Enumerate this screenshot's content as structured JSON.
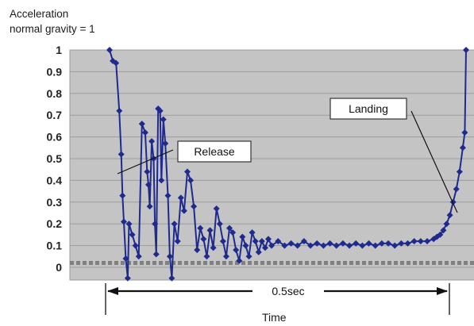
{
  "chart_data": {
    "type": "scatter",
    "ylabel_lines": [
      "Acceleration",
      "normal gravity = 1"
    ],
    "xlabel": "Time",
    "ylim": [
      0,
      1
    ],
    "yticks": [
      "1",
      "0.9",
      "0.8",
      "0.7",
      "0.6",
      "0.5",
      "0.4",
      "0.3",
      "0.2",
      "0.1",
      "0"
    ],
    "grid": true,
    "baseline_y": 0.02,
    "duration_label": "0.5sec",
    "annotations": [
      {
        "text": "Release"
      },
      {
        "text": "Landing"
      }
    ],
    "series": [
      {
        "style": "line-with-diamond-markers",
        "color": "#1f2a8f",
        "points": [
          [
            0.0,
            1.0
          ],
          [
            0.005,
            0.95
          ],
          [
            0.01,
            0.94
          ],
          [
            0.015,
            0.72
          ],
          [
            0.018,
            0.52
          ],
          [
            0.02,
            0.33
          ],
          [
            0.022,
            0.21
          ],
          [
            0.025,
            0.04
          ],
          [
            0.028,
            -0.05
          ],
          [
            0.03,
            0.2
          ],
          [
            0.035,
            0.15
          ],
          [
            0.04,
            0.1
          ],
          [
            0.045,
            0.05
          ],
          [
            0.05,
            0.66
          ],
          [
            0.055,
            0.62
          ],
          [
            0.058,
            0.44
          ],
          [
            0.06,
            0.38
          ],
          [
            0.062,
            0.28
          ],
          [
            0.065,
            0.58
          ],
          [
            0.068,
            0.5
          ],
          [
            0.07,
            0.2
          ],
          [
            0.072,
            0.06
          ],
          [
            0.075,
            0.73
          ],
          [
            0.078,
            0.72
          ],
          [
            0.08,
            0.4
          ],
          [
            0.083,
            0.68
          ],
          [
            0.086,
            0.57
          ],
          [
            0.09,
            0.33
          ],
          [
            0.093,
            0.05
          ],
          [
            0.096,
            -0.05
          ],
          [
            0.1,
            0.2
          ],
          [
            0.105,
            0.12
          ],
          [
            0.11,
            0.32
          ],
          [
            0.115,
            0.26
          ],
          [
            0.12,
            0.44
          ],
          [
            0.125,
            0.4
          ],
          [
            0.13,
            0.28
          ],
          [
            0.135,
            0.08
          ],
          [
            0.14,
            0.18
          ],
          [
            0.145,
            0.13
          ],
          [
            0.15,
            0.05
          ],
          [
            0.155,
            0.17
          ],
          [
            0.16,
            0.09
          ],
          [
            0.165,
            0.27
          ],
          [
            0.17,
            0.2
          ],
          [
            0.175,
            0.12
          ],
          [
            0.18,
            0.05
          ],
          [
            0.185,
            0.18
          ],
          [
            0.19,
            0.16
          ],
          [
            0.195,
            0.08
          ],
          [
            0.2,
            0.03
          ],
          [
            0.205,
            0.14
          ],
          [
            0.21,
            0.1
          ],
          [
            0.215,
            0.05
          ],
          [
            0.22,
            0.16
          ],
          [
            0.225,
            0.12
          ],
          [
            0.23,
            0.07
          ],
          [
            0.235,
            0.12
          ],
          [
            0.24,
            0.09
          ],
          [
            0.245,
            0.13
          ],
          [
            0.25,
            0.1
          ],
          [
            0.26,
            0.12
          ],
          [
            0.27,
            0.1
          ],
          [
            0.28,
            0.11
          ],
          [
            0.29,
            0.1
          ],
          [
            0.3,
            0.12
          ],
          [
            0.31,
            0.1
          ],
          [
            0.32,
            0.11
          ],
          [
            0.33,
            0.1
          ],
          [
            0.34,
            0.11
          ],
          [
            0.35,
            0.1
          ],
          [
            0.36,
            0.11
          ],
          [
            0.37,
            0.1
          ],
          [
            0.38,
            0.11
          ],
          [
            0.39,
            0.1
          ],
          [
            0.4,
            0.11
          ],
          [
            0.41,
            0.1
          ],
          [
            0.42,
            0.11
          ],
          [
            0.43,
            0.11
          ],
          [
            0.44,
            0.1
          ],
          [
            0.45,
            0.11
          ],
          [
            0.46,
            0.11
          ],
          [
            0.47,
            0.12
          ],
          [
            0.48,
            0.12
          ],
          [
            0.49,
            0.12
          ],
          [
            0.5,
            0.13
          ],
          [
            0.505,
            0.14
          ],
          [
            0.51,
            0.15
          ],
          [
            0.515,
            0.17
          ],
          [
            0.52,
            0.2
          ],
          [
            0.525,
            0.24
          ],
          [
            0.53,
            0.3
          ],
          [
            0.535,
            0.36
          ],
          [
            0.54,
            0.44
          ],
          [
            0.545,
            0.55
          ],
          [
            0.548,
            0.62
          ],
          [
            0.55,
            1.0
          ]
        ]
      }
    ]
  }
}
